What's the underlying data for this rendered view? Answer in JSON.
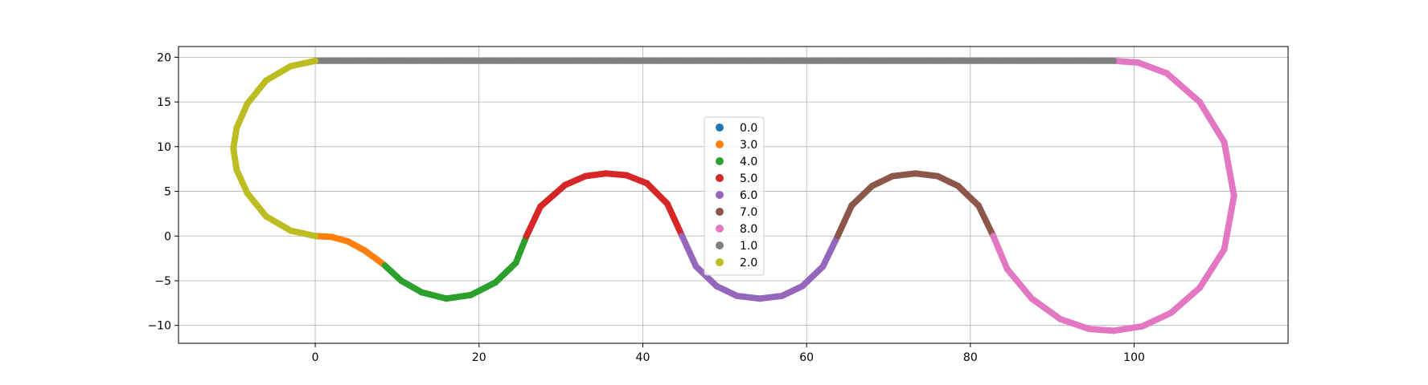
{
  "chart_data": {
    "type": "scatter",
    "title": "",
    "xlabel": "",
    "ylabel": "",
    "xlim": [
      -16.7,
      118.8
    ],
    "ylim": [
      -12.0,
      21.2
    ],
    "xticks": [
      0,
      20,
      40,
      60,
      80,
      100
    ],
    "yticks": [
      -10,
      -5,
      0,
      5,
      10,
      15,
      20
    ],
    "grid": true,
    "legend_position": "center",
    "series": [
      {
        "name": "0.0",
        "color": "#1f77b4",
        "points": [
          [
            0.0,
            0.0
          ]
        ]
      },
      {
        "name": "3.0",
        "color": "#ff7f0e",
        "points": [
          [
            0.0,
            0.0
          ],
          [
            2.0,
            -0.1
          ],
          [
            4.0,
            -0.6
          ],
          [
            6.0,
            -1.6
          ],
          [
            7.5,
            -2.6
          ],
          [
            8.5,
            -3.3
          ]
        ]
      },
      {
        "name": "4.0",
        "color": "#2ca02c",
        "points": [
          [
            8.5,
            -3.3
          ],
          [
            10.5,
            -5.0
          ],
          [
            13.0,
            -6.3
          ],
          [
            16.0,
            -7.0
          ],
          [
            19.0,
            -6.6
          ],
          [
            22.0,
            -5.2
          ],
          [
            24.5,
            -3.0
          ],
          [
            25.8,
            0.0
          ]
        ]
      },
      {
        "name": "5.0",
        "color": "#d62728",
        "points": [
          [
            25.8,
            0.0
          ],
          [
            27.5,
            3.3
          ],
          [
            30.5,
            5.7
          ],
          [
            33.0,
            6.7
          ],
          [
            35.5,
            7.0
          ],
          [
            38.0,
            6.8
          ],
          [
            40.5,
            5.9
          ],
          [
            43.0,
            3.6
          ],
          [
            44.8,
            0.0
          ]
        ]
      },
      {
        "name": "6.0",
        "color": "#9467bd",
        "points": [
          [
            44.8,
            0.0
          ],
          [
            46.5,
            -3.4
          ],
          [
            49.0,
            -5.6
          ],
          [
            51.5,
            -6.7
          ],
          [
            54.3,
            -7.0
          ],
          [
            57.0,
            -6.7
          ],
          [
            59.5,
            -5.6
          ],
          [
            62.0,
            -3.4
          ],
          [
            63.8,
            0.0
          ]
        ]
      },
      {
        "name": "7.0",
        "color": "#8c564b",
        "points": [
          [
            63.8,
            0.0
          ],
          [
            65.5,
            3.4
          ],
          [
            68.0,
            5.6
          ],
          [
            70.5,
            6.7
          ],
          [
            73.3,
            7.0
          ],
          [
            76.0,
            6.7
          ],
          [
            78.5,
            5.6
          ],
          [
            81.0,
            3.4
          ],
          [
            82.8,
            0.0
          ]
        ]
      },
      {
        "name": "8.0",
        "color": "#e377c2",
        "points": [
          [
            82.8,
            0.0
          ],
          [
            84.5,
            -3.7
          ],
          [
            87.5,
            -7.0
          ],
          [
            91.0,
            -9.3
          ],
          [
            94.5,
            -10.4
          ],
          [
            97.5,
            -10.6
          ],
          [
            101.0,
            -10.1
          ],
          [
            104.5,
            -8.6
          ],
          [
            108.0,
            -5.8
          ],
          [
            111.0,
            -1.5
          ],
          [
            112.2,
            4.5
          ],
          [
            111.0,
            10.5
          ],
          [
            108.0,
            15.0
          ],
          [
            104.0,
            18.2
          ],
          [
            100.5,
            19.4
          ],
          [
            97.5,
            19.6
          ]
        ]
      },
      {
        "name": "1.0",
        "color": "#7f7f7f",
        "points": [
          [
            0.0,
            19.6
          ],
          [
            97.5,
            19.6
          ]
        ]
      },
      {
        "name": "2.0",
        "color": "#bcbd22",
        "points": [
          [
            0.0,
            19.6
          ],
          [
            -3.0,
            19.0
          ],
          [
            -6.0,
            17.4
          ],
          [
            -8.3,
            14.8
          ],
          [
            -9.6,
            12.1
          ],
          [
            -10.0,
            9.8
          ],
          [
            -9.6,
            7.4
          ],
          [
            -8.3,
            4.8
          ],
          [
            -6.0,
            2.2
          ],
          [
            -3.0,
            0.6
          ],
          [
            0.0,
            0.0
          ]
        ]
      }
    ]
  }
}
